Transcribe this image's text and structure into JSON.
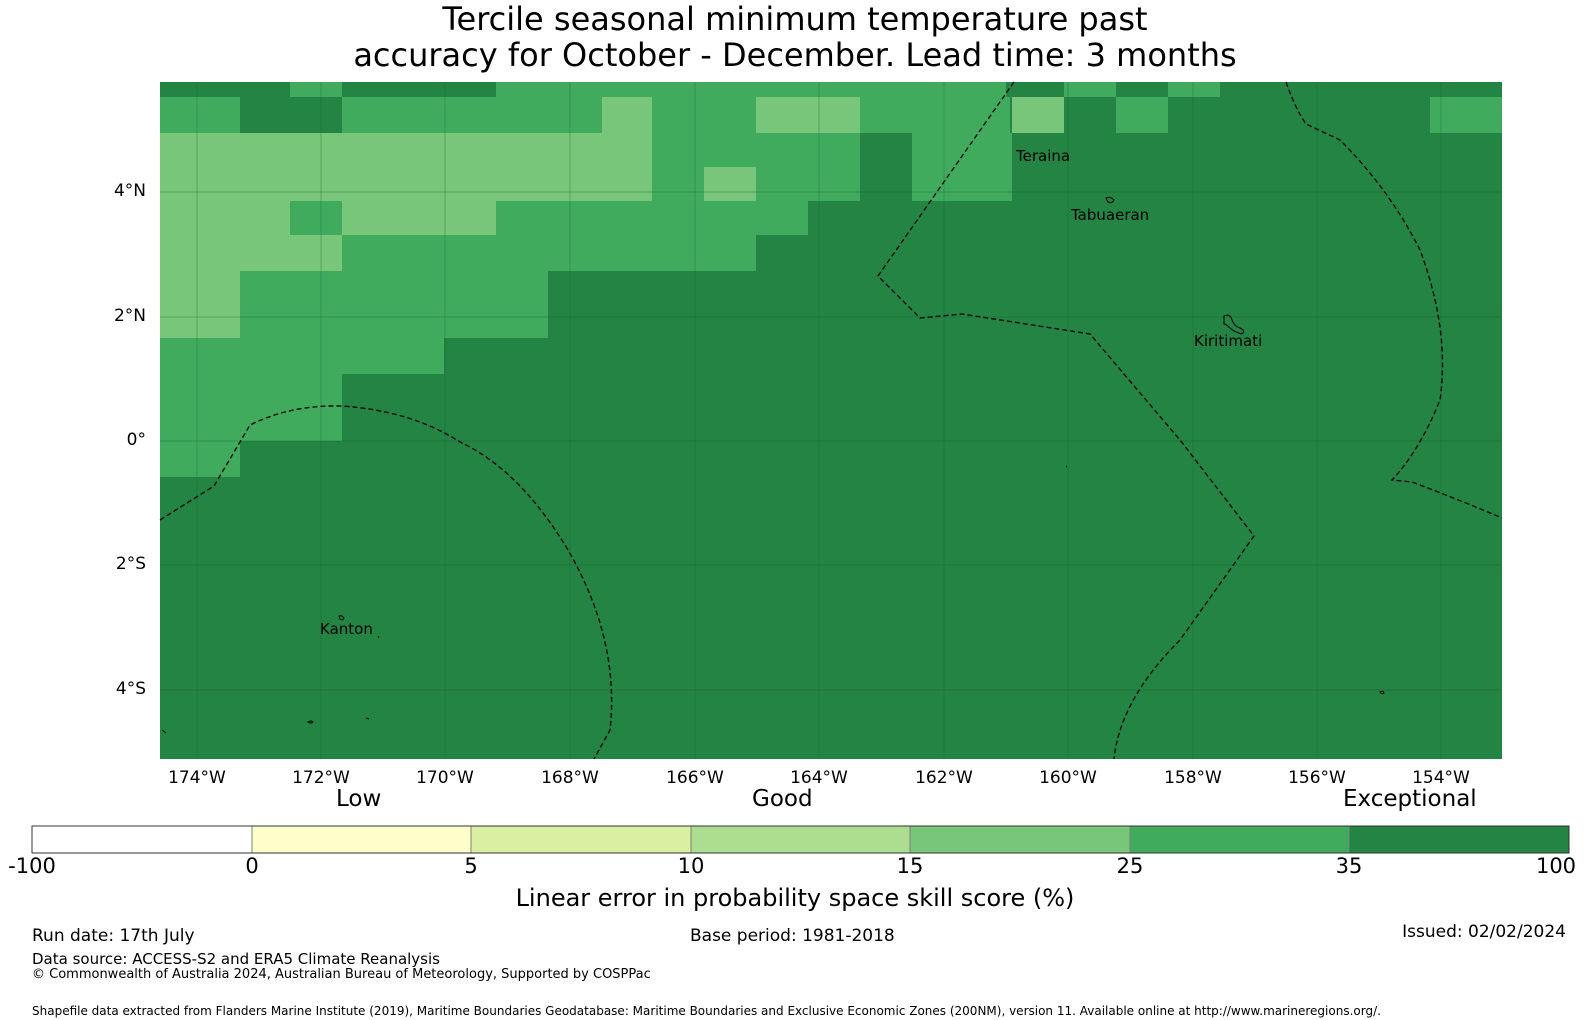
{
  "title_line1": "Tercile seasonal minimum temperature past",
  "title_line2": "accuracy for October - December. Lead time: 3 months",
  "map": {
    "x_ticks": [
      "174°W",
      "172°W",
      "170°W",
      "168°W",
      "166°W",
      "164°W",
      "162°W",
      "160°W",
      "158°W",
      "156°W",
      "154°W"
    ],
    "y_ticks": [
      "4°N",
      "2°N",
      "0°",
      "2°S",
      "4°S"
    ],
    "places": {
      "teraina": "Teraina",
      "tabuaeran": "Tabuaeran",
      "kiritimati": "Kiritimati",
      "kanton": "Kanton"
    },
    "colors": {
      "c15_25": "#78c679",
      "c25_35": "#41ab5d",
      "c35_100": "#238443"
    }
  },
  "colorbar": {
    "categories": {
      "low": "Low",
      "good": "Good",
      "exceptional": "Exceptional"
    },
    "ticks": [
      "-100",
      "0",
      "5",
      "10",
      "15",
      "25",
      "35",
      "100"
    ],
    "colors": [
      "#ffffff",
      "#ffffcc",
      "#d9f0a3",
      "#addd8e",
      "#78c679",
      "#41ab5d",
      "#238443"
    ],
    "label": "Linear error in probability space skill score (%)"
  },
  "footer": {
    "run_date": "Run date: 17th July",
    "base_period": "Base period: 1981-2018",
    "issued": "Issued: 02/02/2024",
    "data_source": "Data source: ACCESS-S2 and ERA5 Climate Reanalysis",
    "copyright": "© Commonwealth of Australia 2024, Australian Bureau of Meteorology, Supported by COSPPac",
    "shapefile": "Shapefile data extracted from Flanders Marine Institute (2019), Maritime Boundaries Geodatabase: Maritime Boundaries and Exclusive Economic Zones (200NM), version 11. Available online at http://www.marineregions.org/."
  }
}
